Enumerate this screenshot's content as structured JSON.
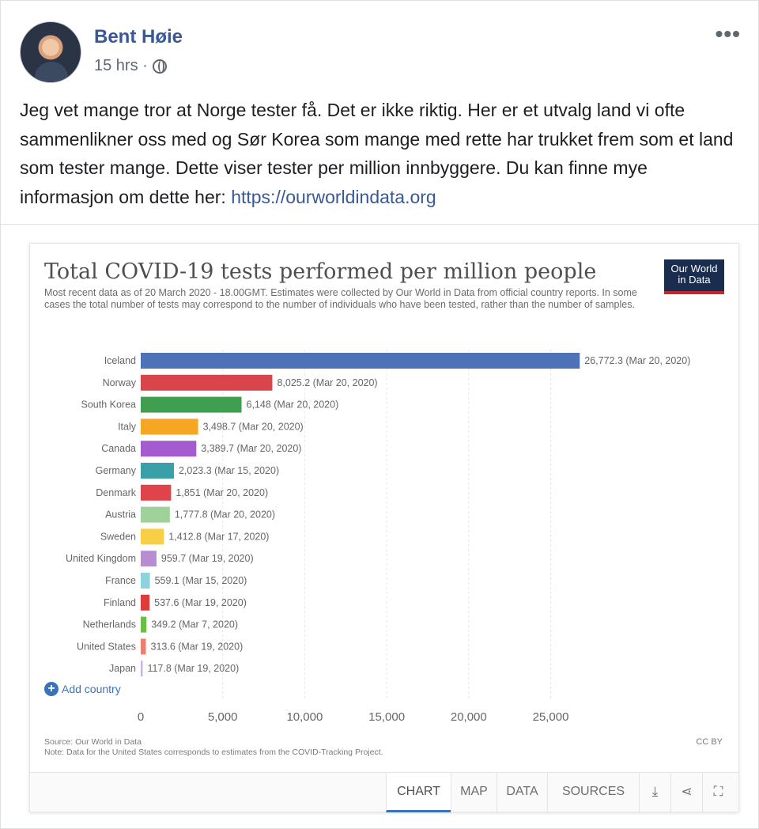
{
  "post": {
    "author": "Bent Høie",
    "time": "15 hrs ·",
    "text": "Jeg vet mange tror at Norge tester få. Det er ikke riktig. Her er et utvalg land vi ofte sammenlikner oss med og Sør Korea som mange med rette har trukket frem som et land som tester mange. Dette viser tester per million innbyggere. Du kan finne mye informasjon om dette her: ",
    "link": "https://ourworldindata.org"
  },
  "chart_card": {
    "logo_line1": "Our World",
    "logo_line2": "in Data",
    "add_country": "Add country",
    "source": "Source: Our World in Data",
    "note": "Note: Data for the United States corresponds to estimates from the COVID-Tracking Project.",
    "license": "CC BY",
    "tabs": [
      "CHART",
      "MAP",
      "DATA",
      "SOURCES"
    ],
    "active_tab": "CHART"
  },
  "chart_data": {
    "type": "bar",
    "orientation": "horizontal",
    "title": "Total COVID-19 tests performed per million people",
    "subtitle": "Most recent data as of 20 March 2020 - 18.00GMT. Estimates were collected by Our World in Data from official country reports. In some cases the total number of tests may correspond to the number of individuals who have been tested, rather than the number of samples.",
    "categories": [
      "Iceland",
      "Norway",
      "South Korea",
      "Italy",
      "Canada",
      "Germany",
      "Denmark",
      "Austria",
      "Sweden",
      "United Kingdom",
      "France",
      "Finland",
      "Netherlands",
      "United States",
      "Japan"
    ],
    "values": [
      26772.3,
      8025.2,
      6148,
      3498.7,
      3389.7,
      2023.3,
      1851,
      1777.8,
      1412.8,
      959.7,
      559.1,
      537.6,
      349.2,
      313.6,
      117.8
    ],
    "labels": [
      "26,772.3 (Mar 20, 2020)",
      "8,025.2 (Mar 20, 2020)",
      "6,148 (Mar 20, 2020)",
      "3,498.7 (Mar 20, 2020)",
      "3,389.7 (Mar 20, 2020)",
      "2,023.3 (Mar 15, 2020)",
      "1,851 (Mar 20, 2020)",
      "1,777.8 (Mar 20, 2020)",
      "1,412.8 (Mar 17, 2020)",
      "959.7 (Mar 19, 2020)",
      "559.1 (Mar 15, 2020)",
      "537.6 (Mar 19, 2020)",
      "349.2 (Mar 7, 2020)",
      "313.6 (Mar 19, 2020)",
      "117.8 (Mar 19, 2020)"
    ],
    "colors": [
      "#4e72b8",
      "#d8454a",
      "#3f9e4f",
      "#f5a623",
      "#a45bd0",
      "#3aa0a8",
      "#e0444a",
      "#9fd29a",
      "#f7ce45",
      "#b78cd1",
      "#8dd3de",
      "#e03b3b",
      "#6bbd45",
      "#f07e6e",
      "#c7b3e6"
    ],
    "xlim": [
      0,
      27000
    ],
    "xticks": [
      0,
      5000,
      10000,
      15000,
      20000,
      25000
    ],
    "xtick_labels": [
      "0",
      "5,000",
      "10,000",
      "15,000",
      "20,000",
      "25,000"
    ],
    "grid": true
  }
}
